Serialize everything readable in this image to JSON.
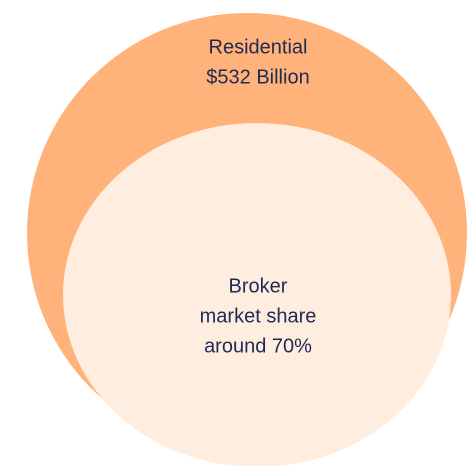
{
  "outer": {
    "lines": [
      "Residential",
      "$532 Billion"
    ]
  },
  "inner": {
    "lines": [
      "Broker",
      "market share",
      "around 70%"
    ]
  }
}
